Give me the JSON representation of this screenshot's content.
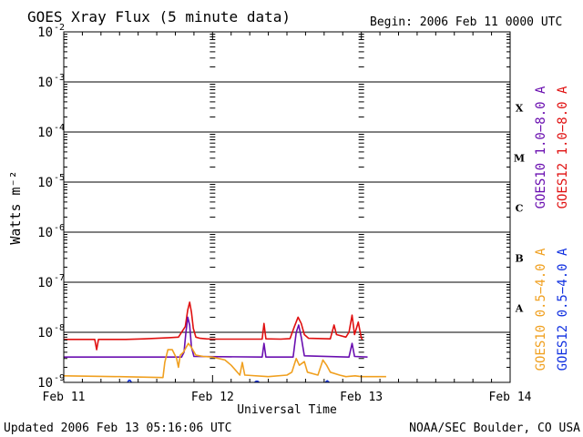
{
  "header": {
    "title": "GOES Xray Flux (5 minute data)",
    "begin": "Begin:  2006 Feb 11 0000 UTC"
  },
  "footer": {
    "updated": "Updated 2006 Feb 13 05:16:06 UTC",
    "credit": "NOAA/SEC Boulder, CO USA"
  },
  "chart_data": {
    "type": "line",
    "title": "GOES Xray Flux (5 minute data)",
    "xlabel": "Universal Time",
    "ylabel": "Watts m⁻²",
    "yscale": "log",
    "ylim": [
      1e-09,
      0.01
    ],
    "xlim": [
      0,
      72
    ],
    "x_unit": "hours since 2006 Feb 11 0000 UTC",
    "x_ticks": [
      {
        "x": 0,
        "label": "Feb 11"
      },
      {
        "x": 24,
        "label": "Feb 12"
      },
      {
        "x": 48,
        "label": "Feb 13"
      },
      {
        "x": 72,
        "label": "Feb 14"
      }
    ],
    "y_ticks": [
      {
        "base": "10",
        "exp": "-9",
        "value": 1e-09
      },
      {
        "base": "10",
        "exp": "-8",
        "value": 1e-08
      },
      {
        "base": "10",
        "exp": "-7",
        "value": 1e-07
      },
      {
        "base": "10",
        "exp": "-6",
        "value": 1e-06
      },
      {
        "base": "10",
        "exp": "-5",
        "value": 1e-05
      },
      {
        "base": "10",
        "exp": "-4",
        "value": 0.0001
      },
      {
        "base": "10",
        "exp": "-3",
        "value": 0.001
      },
      {
        "base": "10",
        "exp": "-2",
        "value": 0.01
      }
    ],
    "flare_classes": [
      {
        "label": "A",
        "value": 3.16e-08
      },
      {
        "label": "B",
        "value": 3.16e-07
      },
      {
        "label": "C",
        "value": 3.16e-06
      },
      {
        "label": "M",
        "value": 3.16e-05
      },
      {
        "label": "X",
        "value": 0.000316
      }
    ],
    "legend": [
      {
        "name": "GOES10 1.0−8.0 A",
        "color": "#6a0fb0"
      },
      {
        "name": "GOES12 1.0−8.0 A",
        "color": "#e01010"
      },
      {
        "name": "GOES10 0.5−4.0 A",
        "color": "#f0a020"
      },
      {
        "name": "GOES12 0.5−4.0 A",
        "color": "#1030e0"
      }
    ],
    "series": [
      {
        "name": "GOES12 1.0−8.0 A",
        "color": "#e01010",
        "points": [
          [
            0,
            7.2e-09
          ],
          [
            5,
            7.2e-09
          ],
          [
            5.3,
            4.5e-09
          ],
          [
            5.6,
            7.2e-09
          ],
          [
            10,
            7.2e-09
          ],
          [
            13,
            7.4e-09
          ],
          [
            17,
            7.8e-09
          ],
          [
            18.5,
            8e-09
          ],
          [
            19.6,
            1.3e-08
          ],
          [
            20,
            2.8e-08
          ],
          [
            20.3,
            4e-08
          ],
          [
            20.6,
            2.5e-08
          ],
          [
            20.9,
            1.2e-08
          ],
          [
            21.3,
            8e-09
          ],
          [
            22,
            7.6e-09
          ],
          [
            23,
            7.4e-09
          ],
          [
            24,
            7.3e-09
          ],
          [
            32,
            7.3e-09
          ],
          [
            32.3,
            1.5e-08
          ],
          [
            32.6,
            7.4e-09
          ],
          [
            35,
            7.3e-09
          ],
          [
            36.5,
            7.5e-09
          ],
          [
            37.2,
            1.3e-08
          ],
          [
            37.8,
            2e-08
          ],
          [
            38.3,
            1.5e-08
          ],
          [
            38.8,
            9e-09
          ],
          [
            39.5,
            7.6e-09
          ],
          [
            43,
            7.4e-09
          ],
          [
            43.6,
            1.4e-08
          ],
          [
            44,
            9e-09
          ],
          [
            45.5,
            8e-09
          ],
          [
            46,
            1e-08
          ],
          [
            46.5,
            2.2e-08
          ],
          [
            46.9,
            9e-09
          ],
          [
            47.5,
            1.6e-08
          ],
          [
            48,
            7.6e-09
          ],
          [
            48.2,
            7.3e-09
          ]
        ]
      },
      {
        "name": "GOES10 1.0−8.0 A",
        "color": "#6a0fb0",
        "points": [
          [
            0,
            3.2e-09
          ],
          [
            19,
            3.2e-09
          ],
          [
            19.4,
            4e-09
          ],
          [
            19.7,
            1e-08
          ],
          [
            20,
            2e-08
          ],
          [
            20.3,
            1.4e-08
          ],
          [
            20.6,
            5e-09
          ],
          [
            21,
            3.3e-09
          ],
          [
            32,
            3.2e-09
          ],
          [
            32.3,
            6e-09
          ],
          [
            32.6,
            3.2e-09
          ],
          [
            37,
            3.2e-09
          ],
          [
            37.5,
            1e-08
          ],
          [
            37.9,
            1.4e-08
          ],
          [
            38.3,
            8e-09
          ],
          [
            38.8,
            3.4e-09
          ],
          [
            46,
            3.2e-09
          ],
          [
            46.5,
            6e-09
          ],
          [
            46.9,
            3.3e-09
          ],
          [
            49,
            3.2e-09
          ]
        ]
      },
      {
        "name": "GOES10 0.5−4.0 A",
        "color": "#f0a020",
        "points": [
          [
            0,
            1.35e-09
          ],
          [
            9,
            1.3e-09
          ],
          [
            16,
            1.25e-09
          ],
          [
            16.3,
            2.5e-09
          ],
          [
            16.8,
            4.5e-09
          ],
          [
            17.5,
            4.5e-09
          ],
          [
            18.2,
            3e-09
          ],
          [
            18.5,
            2e-09
          ],
          [
            18.8,
            3.5e-09
          ],
          [
            19.3,
            4e-09
          ],
          [
            20.1,
            6e-09
          ],
          [
            20.6,
            5e-09
          ],
          [
            21.3,
            3.5e-09
          ],
          [
            22.5,
            3.3e-09
          ],
          [
            24,
            3.2e-09
          ],
          [
            26,
            2.8e-09
          ],
          [
            27,
            2.2e-09
          ],
          [
            28.4,
            1.4e-09
          ],
          [
            28.8,
            2.5e-09
          ],
          [
            29.2,
            1.4e-09
          ],
          [
            33,
            1.3e-09
          ],
          [
            36,
            1.4e-09
          ],
          [
            36.8,
            1.6e-09
          ],
          [
            37.5,
            3e-09
          ],
          [
            38,
            2.2e-09
          ],
          [
            38.8,
            2.6e-09
          ],
          [
            39.3,
            1.6e-09
          ],
          [
            41,
            1.4e-09
          ],
          [
            41.8,
            2.8e-09
          ],
          [
            42.4,
            2.2e-09
          ],
          [
            43,
            1.6e-09
          ],
          [
            44.5,
            1.4e-09
          ],
          [
            45.5,
            1.3e-09
          ],
          [
            47,
            1.35e-09
          ],
          [
            48,
            1.3e-09
          ],
          [
            52,
            1.3e-09
          ]
        ]
      },
      {
        "name": "GOES12 0.5−4.0 A",
        "color": "#1030e0",
        "points": [
          [
            10.3,
            1e-09
          ],
          [
            10.5,
            1.1e-09
          ],
          [
            10.7,
            1.1e-09
          ],
          [
            10.9,
            1e-09
          ]
        ]
      },
      {
        "name": "GOES12 0.5−4.0 A",
        "color": "#1030e0",
        "points": [
          [
            30.8,
            1e-09
          ],
          [
            31,
            1.05e-09
          ],
          [
            31.3,
            1.05e-09
          ],
          [
            31.5,
            1e-09
          ]
        ]
      },
      {
        "name": "GOES12 0.5−4.0 A",
        "color": "#1030e0",
        "points": [
          [
            42.2,
            1e-09
          ],
          [
            42.5,
            1.08e-09
          ],
          [
            42.8,
            1e-09
          ]
        ]
      }
    ]
  }
}
